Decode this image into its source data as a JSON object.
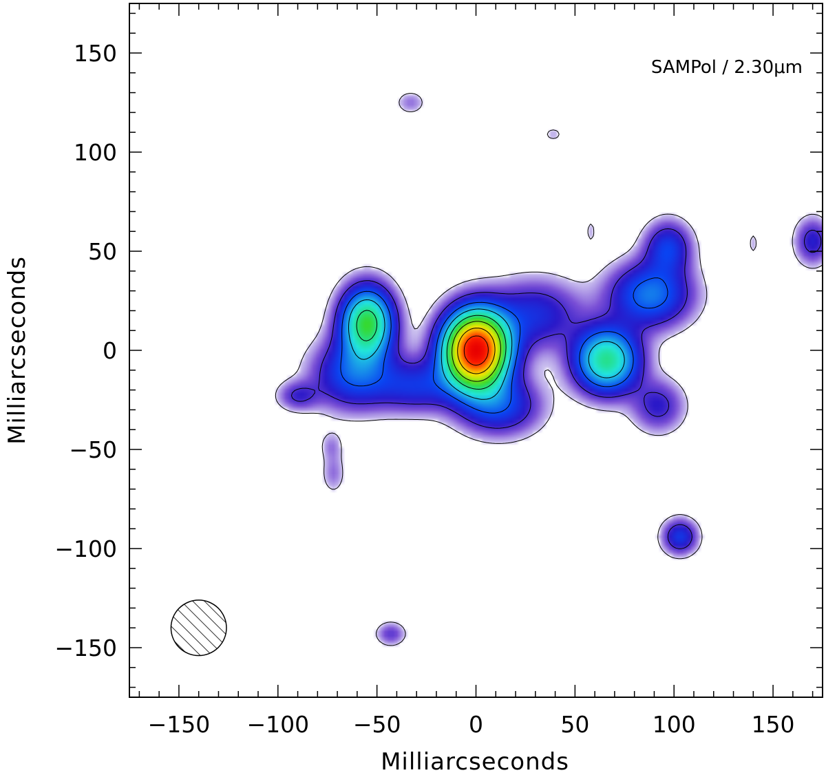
{
  "chart_data": {
    "type": "heatmap",
    "xlabel": "Milliarcseconds",
    "ylabel": "Milliarcseconds",
    "xlim": [
      -175,
      175
    ],
    "ylim": [
      -175,
      175
    ],
    "x_ticks": [
      -150,
      -100,
      -50,
      0,
      50,
      100,
      150
    ],
    "y_ticks": [
      -150,
      -100,
      -50,
      0,
      50,
      100,
      150
    ],
    "x_tick_labels": [
      "−150",
      "−100",
      "−50",
      "0",
      "50",
      "100",
      "150"
    ],
    "y_tick_labels": [
      "−150",
      "−100",
      "−50",
      "0",
      "50",
      "100",
      "150"
    ],
    "minor_tick_step": 10,
    "annotation": "SAMPol / 2.30μm",
    "colormap": [
      "#ffffff",
      "#cfc6f0",
      "#7a4fd6",
      "#2a18c8",
      "#0a44f2",
      "#1a9ee8",
      "#22e6e0",
      "#25e08a",
      "#38d824",
      "#b6ea10",
      "#f8e400",
      "#ff8a00",
      "#ff2000",
      "#e80000"
    ],
    "peak_position_mas": [
      0,
      0
    ],
    "beam": {
      "x": -140,
      "y": -140,
      "radius": 14,
      "fill": "hatched"
    },
    "components": [
      {
        "x": 0,
        "y": 0,
        "sx": 11,
        "sy": 13,
        "amp": 1.0
      },
      {
        "x": -55,
        "y": 14,
        "sx": 9,
        "sy": 12,
        "amp": 0.48
      },
      {
        "x": 66,
        "y": -5,
        "sx": 11,
        "sy": 11,
        "amp": 0.42
      },
      {
        "x": 88,
        "y": 28,
        "sx": 14,
        "sy": 11,
        "amp": 0.24
      },
      {
        "x": 97,
        "y": 52,
        "sx": 8,
        "sy": 9,
        "amp": 0.17
      },
      {
        "x": 30,
        "y": 18,
        "sx": 16,
        "sy": 12,
        "amp": 0.15
      },
      {
        "x": -30,
        "y": -18,
        "sx": 14,
        "sy": 9,
        "amp": 0.15
      },
      {
        "x": -62,
        "y": -12,
        "sx": 14,
        "sy": 12,
        "amp": 0.2
      },
      {
        "x": 12,
        "y": -28,
        "sx": 14,
        "sy": 10,
        "amp": 0.18
      },
      {
        "x": 92,
        "y": -28,
        "sx": 9,
        "sy": 9,
        "amp": 0.12
      },
      {
        "x": -90,
        "y": -23,
        "sx": 7,
        "sy": 5,
        "amp": 0.1
      },
      {
        "x": -72,
        "y": -62,
        "sx": 4,
        "sy": 7,
        "amp": 0.06
      },
      {
        "x": -73,
        "y": -48,
        "sx": 4,
        "sy": 5,
        "amp": 0.05
      },
      {
        "x": 103,
        "y": -94,
        "sx": 6,
        "sy": 6,
        "amp": 0.17
      },
      {
        "x": -43,
        "y": -143,
        "sx": 5,
        "sy": 4,
        "amp": 0.09
      },
      {
        "x": 170,
        "y": 55,
        "sx": 6,
        "sy": 8,
        "amp": 0.13
      },
      {
        "x": -33,
        "y": 125,
        "sx": 5,
        "sy": 4,
        "amp": 0.06
      },
      {
        "x": 39,
        "y": 109,
        "sx": 4,
        "sy": 3,
        "amp": 0.04
      },
      {
        "x": 58,
        "y": 60,
        "sx": 2,
        "sy": 5,
        "amp": 0.04
      },
      {
        "x": 140,
        "y": 54,
        "sx": 2,
        "sy": 5,
        "amp": 0.04
      }
    ],
    "contour_levels": [
      0.03,
      0.1,
      0.2,
      0.3,
      0.42,
      0.55,
      0.7,
      0.86
    ]
  }
}
